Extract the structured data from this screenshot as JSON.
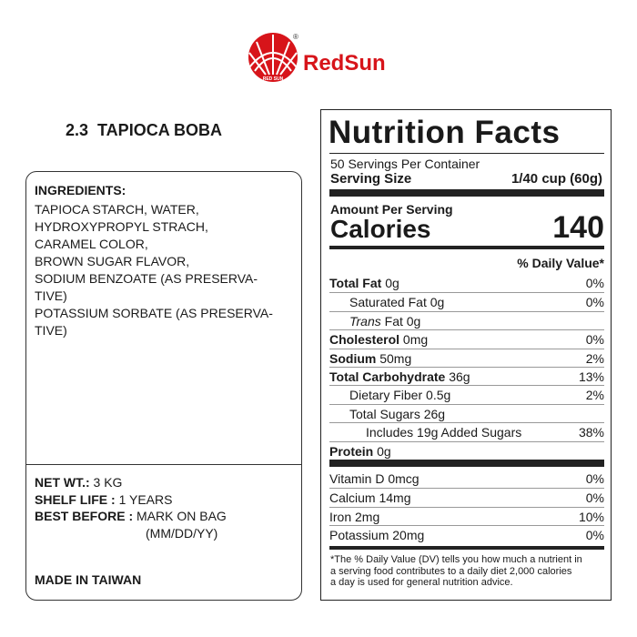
{
  "brand": {
    "name": "RedSun",
    "registered": "®",
    "mark_text": "RED SUN"
  },
  "product_title": "2.3  TAPIOCA BOBA",
  "ingredients": {
    "heading": "INGREDIENTS:",
    "lines": [
      "TAPIOCA STARCH, WATER,",
      "HYDROXYPROPYL STRACH,",
      "CARAMEL COLOR,",
      "BROWN SUGAR FLAVOR,",
      "SODIUM BENZOATE (AS PRESERVA-",
      "TIVE)",
      "POTASSIUM SORBATE (AS PRESERVA-",
      "TIVE)"
    ]
  },
  "details": {
    "net_wt_label": "NET WT.:",
    "net_wt": "3 KG",
    "shelf_life_label": "SHELF LIFE :",
    "shelf_life": "1 YEARS",
    "best_before_label": "BEST BEFORE :",
    "best_before": "MARK ON BAG",
    "best_before_format": "(MM/DD/YY)"
  },
  "origin": "MADE IN TAIWAN",
  "nutrition": {
    "title": "Nutrition Facts",
    "servings": "50 Servings Per Container",
    "serving_size_label": "Serving Size",
    "serving_size": "1/40 cup (60g)",
    "amount_per_serving": "Amount Per Serving",
    "calories_label": "Calories",
    "calories": "140",
    "dv_heading": "% Daily Value*",
    "rows": [
      {
        "label": "Total Fat",
        "amount": "0g",
        "dv": "0%"
      },
      {
        "label": "Saturated Fat",
        "amount": "0g",
        "dv": "0%"
      },
      {
        "label_italic": "Trans",
        "label": "Fat",
        "amount": "0g"
      },
      {
        "label": "Cholesterol",
        "amount": "0mg",
        "dv": "0%"
      },
      {
        "label": "Sodium",
        "amount": "50mg",
        "dv": "2%"
      },
      {
        "label": "Total Carbohydrate",
        "amount": "36g",
        "dv": "13%"
      },
      {
        "label": "Dietary Fiber",
        "amount": "0.5g",
        "dv": "2%"
      },
      {
        "label": "Total Sugars",
        "amount": "26g"
      },
      {
        "label": "Includes 19g Added Sugars",
        "dv": "38%"
      },
      {
        "label": "Protein",
        "amount": "0g"
      }
    ],
    "vitamins": [
      {
        "label": "Vitamin D",
        "amount": "0mcg",
        "dv": "0%"
      },
      {
        "label": "Calcium",
        "amount": "14mg",
        "dv": "0%"
      },
      {
        "label": "Iron",
        "amount": "2mg",
        "dv": "10%"
      },
      {
        "label": "Potassium",
        "amount": "20mg",
        "dv": "0%"
      }
    ],
    "footnote_lines": [
      "*The % Daily Value (DV) tells you how much a nutrient in",
      "a serving food contributes to a daily diet 2,000 calories",
      "a day is used for general nutrition advice."
    ]
  }
}
